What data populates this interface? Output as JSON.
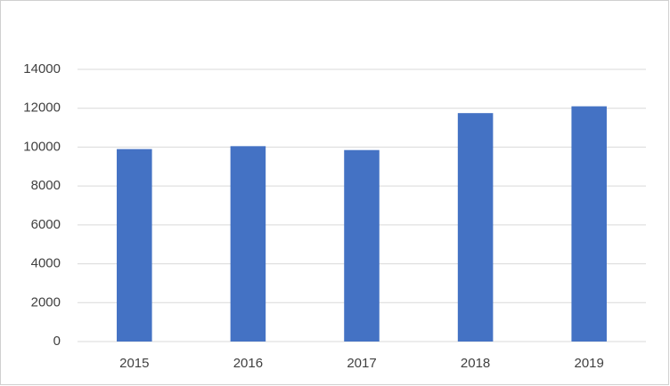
{
  "chart_data": {
    "type": "bar",
    "categories": [
      "2015",
      "2016",
      "2017",
      "2018",
      "2019"
    ],
    "values": [
      9900,
      10050,
      9850,
      11750,
      12100
    ],
    "color": "#4472c4",
    "ylim": [
      0,
      14000
    ],
    "yticks": [
      0,
      2000,
      4000,
      6000,
      8000,
      10000,
      12000,
      14000
    ],
    "grid": true
  }
}
